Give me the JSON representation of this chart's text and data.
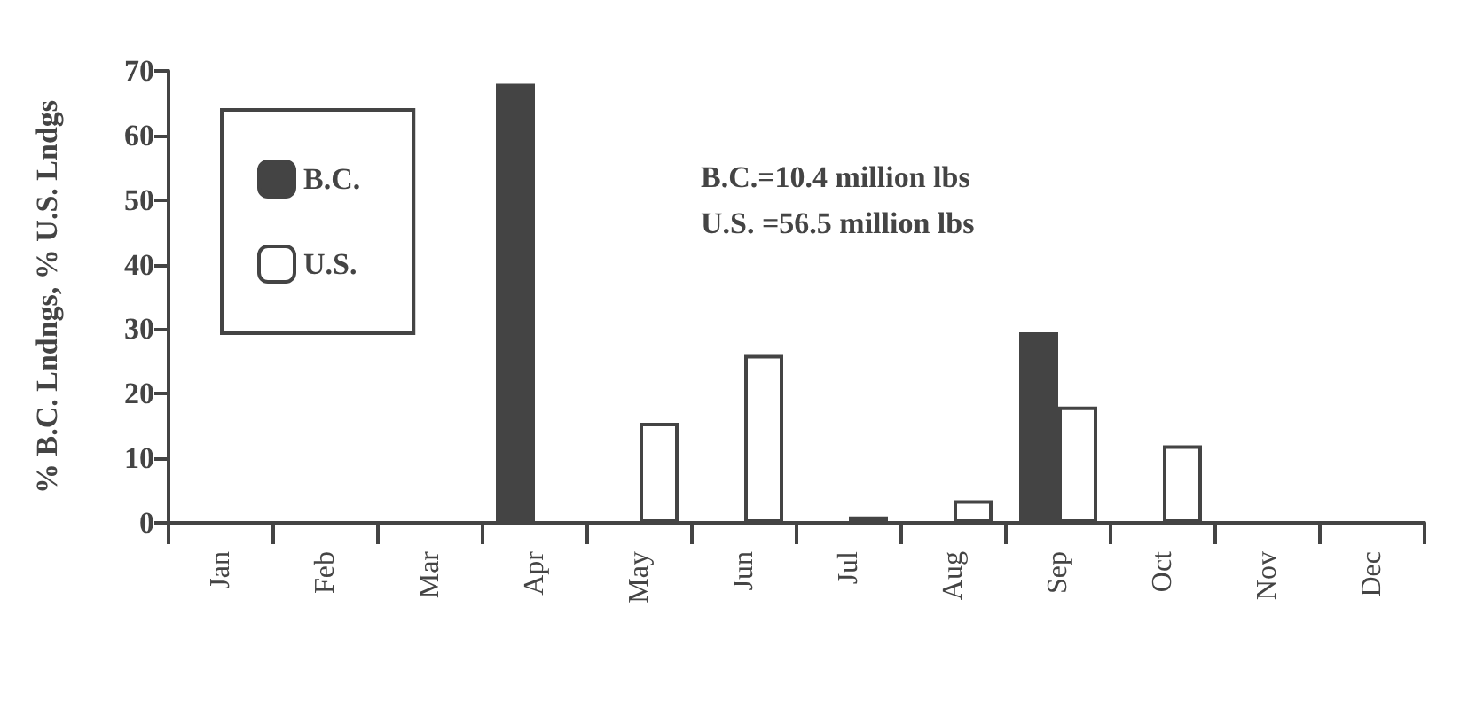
{
  "chart_data": {
    "type": "bar",
    "ylabel": "% B.C. Lndngs, % U.S. Lndgs",
    "categories": [
      "Jan",
      "Feb",
      "Mar",
      "Apr",
      "May",
      "Jun",
      "Jul",
      "Aug",
      "Sep",
      "Oct",
      "Nov",
      "Dec"
    ],
    "series": [
      {
        "name": "B.C.",
        "color": "#444444",
        "values": [
          null,
          null,
          null,
          68,
          null,
          null,
          null,
          null,
          29.5,
          null,
          null,
          null
        ]
      },
      {
        "name": "U.S.",
        "color": "#ffffff",
        "values": [
          null,
          null,
          null,
          null,
          15.5,
          26,
          1,
          3.5,
          18,
          12,
          null,
          null
        ]
      }
    ],
    "ylim": [
      0,
      70
    ],
    "yticks": [
      0,
      10,
      20,
      30,
      40,
      50,
      60,
      70
    ],
    "grid": false,
    "legend": "top left",
    "annotations": [
      "B.C.=10.4 million lbs",
      "U.S. =56.5 million lbs"
    ]
  }
}
